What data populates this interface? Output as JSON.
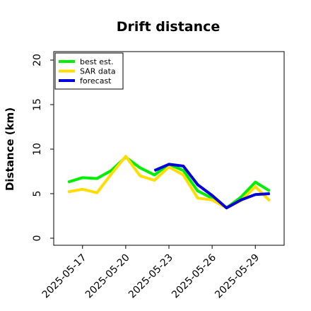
{
  "chart_data": {
    "type": "line",
    "title": "Drift distance",
    "xlabel": "",
    "ylabel": "Distance (km)",
    "ylim": [
      0,
      20
    ],
    "xlim": [
      "2025-05-15",
      "2025-05-31"
    ],
    "yticks": [
      0,
      5,
      10,
      15,
      20
    ],
    "xticks": [
      "2025-05-17",
      "2025-05-20",
      "2025-05-23",
      "2025-05-26",
      "2025-05-29"
    ],
    "grid": false,
    "legend_position": "top-left",
    "series": [
      {
        "name": "best est.",
        "color": "#00ee00",
        "x": [
          "2025-05-16",
          "2025-05-17",
          "2025-05-18",
          "2025-05-19",
          "2025-05-20",
          "2025-05-21",
          "2025-05-22",
          "2025-05-23",
          "2025-05-24",
          "2025-05-25",
          "2025-05-26",
          "2025-05-27",
          "2025-05-28",
          "2025-05-29",
          "2025-05-30"
        ],
        "values": [
          6.3,
          6.8,
          6.7,
          7.6,
          9.1,
          7.9,
          7.1,
          8.3,
          7.6,
          5.3,
          4.5,
          3.4,
          4.6,
          6.3,
          5.3
        ]
      },
      {
        "name": "SAR data",
        "color": "#ffdd00",
        "x": [
          "2025-05-16",
          "2025-05-17",
          "2025-05-18",
          "2025-05-19",
          "2025-05-20",
          "2025-05-21",
          "2025-05-22",
          "2025-05-23",
          "2025-05-24",
          "2025-05-25",
          "2025-05-26",
          "2025-05-27",
          "2025-05-28",
          "2025-05-29",
          "2025-05-30"
        ],
        "values": [
          5.2,
          5.5,
          5.1,
          7.2,
          9.2,
          7.0,
          6.5,
          8.0,
          7.1,
          4.5,
          4.3,
          3.4,
          4.2,
          5.8,
          4.2
        ]
      },
      {
        "name": "forecast",
        "color": "#0000dd",
        "x": [
          "2025-05-22",
          "2025-05-23",
          "2025-05-24",
          "2025-05-25",
          "2025-05-26",
          "2025-05-27",
          "2025-05-28",
          "2025-05-29",
          "2025-05-30"
        ],
        "values": [
          7.6,
          8.3,
          8.1,
          6.0,
          4.8,
          3.4,
          4.3,
          4.9,
          5.0
        ]
      }
    ]
  }
}
